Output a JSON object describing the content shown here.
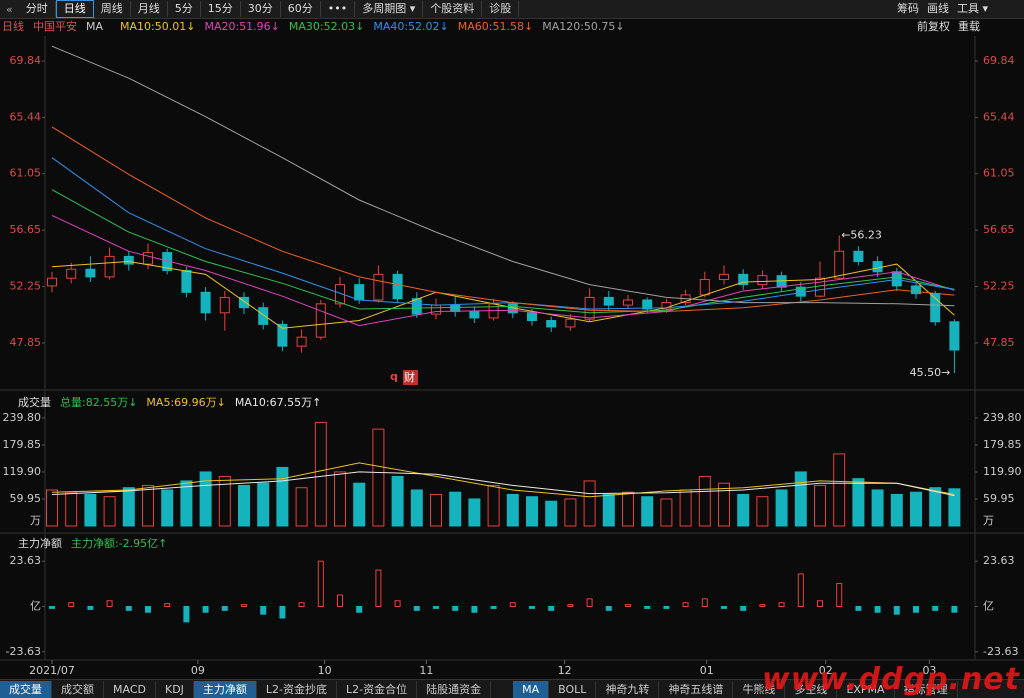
{
  "toolbar": {
    "tabs": [
      "分时",
      "日线",
      "周线",
      "月线",
      "5分",
      "15分",
      "30分",
      "60分",
      "•••",
      "多周期图 ▾",
      "个股资料",
      "诊股"
    ],
    "right": [
      "筹码",
      "画线",
      "工具 ▾"
    ]
  },
  "header": {
    "period": "日线",
    "name": "中国平安",
    "indicator": "MA",
    "right": [
      "前复权",
      "重载"
    ]
  },
  "chart_data": [
    {
      "type": "candlestick",
      "candles": {
        "open": [
          52.3,
          52.9,
          53.6,
          53.0,
          54.6,
          54.0,
          54.9,
          53.5,
          51.8,
          50.2,
          51.4,
          50.6,
          49.3,
          47.6,
          48.3,
          50.9,
          52.4,
          51.2,
          53.2,
          51.3,
          50.1,
          50.8,
          50.3,
          49.8,
          50.9,
          50.2,
          49.6,
          49.1,
          49.7,
          51.4,
          50.8,
          51.2,
          50.5,
          51.0,
          51.6,
          52.8,
          53.2,
          52.4,
          53.1,
          52.2,
          51.5,
          52.9,
          55.0,
          54.2,
          53.4,
          52.3,
          51.7,
          49.5
        ],
        "close": [
          52.9,
          53.6,
          53.0,
          54.6,
          54.0,
          54.9,
          53.5,
          51.8,
          50.2,
          51.4,
          50.6,
          49.3,
          47.6,
          48.3,
          50.9,
          52.4,
          51.2,
          53.2,
          51.3,
          50.1,
          50.8,
          50.3,
          49.8,
          50.9,
          50.2,
          49.6,
          49.1,
          49.7,
          51.4,
          50.8,
          51.2,
          50.5,
          51.0,
          51.6,
          52.8,
          53.2,
          52.4,
          53.1,
          52.2,
          51.5,
          52.9,
          55.0,
          54.2,
          53.4,
          52.3,
          51.7,
          49.5,
          47.3
        ],
        "high": [
          53.4,
          54.1,
          54.6,
          55.3,
          55.0,
          55.6,
          55.2,
          53.8,
          52.2,
          51.9,
          51.8,
          51.0,
          49.6,
          48.9,
          51.2,
          53.0,
          52.9,
          53.9,
          53.5,
          51.8,
          51.3,
          51.5,
          50.7,
          51.3,
          51.1,
          50.5,
          49.9,
          50.1,
          52.1,
          51.9,
          51.6,
          51.4,
          51.3,
          52.0,
          53.4,
          53.9,
          53.6,
          53.5,
          53.4,
          52.6,
          54.2,
          56.23,
          55.4,
          54.6,
          53.7,
          52.5,
          51.9,
          49.7
        ],
        "low": [
          51.8,
          52.5,
          52.6,
          52.8,
          53.5,
          53.6,
          53.2,
          51.4,
          49.6,
          48.8,
          50.1,
          48.9,
          47.2,
          47.1,
          48.1,
          50.6,
          50.9,
          51.0,
          51.0,
          49.8,
          49.7,
          49.9,
          49.4,
          49.6,
          49.8,
          49.2,
          48.7,
          48.8,
          49.5,
          50.4,
          50.5,
          50.2,
          50.2,
          50.8,
          51.4,
          52.4,
          52.0,
          52.1,
          51.9,
          51.1,
          51.4,
          52.8,
          53.9,
          53.0,
          51.9,
          51.3,
          49.2,
          45.5
        ]
      },
      "up_color": "#e8403c",
      "down_color": "#14b3bd",
      "ylim": [
        44.57,
        71.48
      ],
      "yticks": [
        69.84,
        65.44,
        61.05,
        56.65,
        52.25,
        47.85
      ],
      "ma_x": [
        0,
        4,
        8,
        12,
        16,
        20,
        24,
        28,
        32,
        36,
        40,
        44,
        47
      ],
      "series": [
        {
          "name": "MA10:50.01↓",
          "color": "#f0c020",
          "values": [
            53.8,
            54.2,
            53.2,
            49.0,
            49.6,
            51.8,
            50.6,
            49.5,
            50.6,
            52.6,
            52.8,
            54.0,
            50.01
          ]
        },
        {
          "name": "MA20:51.96↓",
          "color": "#e040c0",
          "values": [
            57.8,
            55.0,
            53.5,
            51.5,
            49.2,
            50.3,
            50.4,
            49.8,
            50.3,
            51.9,
            52.6,
            53.4,
            51.96
          ]
        },
        {
          "name": "MA30:52.03↓",
          "color": "#30c050",
          "values": [
            59.8,
            56.5,
            54.2,
            52.5,
            50.5,
            50.6,
            50.7,
            50.2,
            50.4,
            51.4,
            52.3,
            53.0,
            52.03
          ]
        },
        {
          "name": "MA40:52.02↓",
          "color": "#3090f0",
          "values": [
            62.3,
            58.0,
            55.2,
            53.3,
            51.2,
            50.8,
            51.0,
            50.5,
            50.6,
            51.1,
            52.0,
            52.8,
            52.02
          ]
        },
        {
          "name": "MA60:51.58↓",
          "color": "#f06020",
          "values": [
            64.7,
            61.0,
            57.6,
            55.0,
            53.0,
            51.8,
            51.0,
            50.4,
            50.3,
            50.6,
            51.2,
            52.0,
            51.58
          ]
        },
        {
          "name": "MA120:50.75↓",
          "color": "#a0a0a0",
          "values": [
            71.0,
            68.5,
            65.5,
            62.3,
            59.0,
            56.5,
            54.2,
            52.4,
            51.4,
            51.0,
            51.0,
            50.9,
            50.75
          ]
        }
      ],
      "annotations": [
        "←56.23",
        "45.50→"
      ],
      "markers": [
        "q",
        "财"
      ]
    },
    {
      "type": "bar",
      "title": "成交量",
      "total_label": "总量:82.55万↓",
      "unit": "万",
      "values": [
        80,
        75,
        70,
        65,
        85,
        90,
        80,
        100,
        120,
        110,
        90,
        95,
        130,
        85,
        230,
        120,
        95,
        215,
        110,
        80,
        70,
        75,
        60,
        90,
        70,
        65,
        55,
        60,
        100,
        70,
        75,
        65,
        60,
        80,
        110,
        95,
        70,
        65,
        80,
        120,
        90,
        160,
        105,
        80,
        70,
        75,
        85,
        82.55
      ],
      "ylim": [
        0,
        253
      ],
      "yticks": [
        {
          "value": 239.8,
          "label": "239.80"
        },
        179.85,
        {
          "value": 119.9,
          "label": "119.90"
        },
        59.95
      ],
      "series": [
        {
          "name": "MA5:69.96万↓",
          "color": "#f0c020",
          "values": [
            75,
            80,
            100,
            105,
            140,
            110,
            80,
            65,
            78,
            85,
            100,
            95,
            69.96
          ]
        },
        {
          "name": "MA10:67.55万↑",
          "color": "#e8e8e8",
          "values": [
            70,
            78,
            90,
            100,
            120,
            115,
            90,
            72,
            74,
            80,
            95,
            95,
            67.55
          ]
        }
      ]
    },
    {
      "type": "bar",
      "title": "主力净额",
      "summary": "主力净额:-2.95亿↑",
      "values": [
        -1,
        2,
        -1.5,
        3,
        -2,
        -3,
        1.5,
        -8,
        -3,
        -2,
        1,
        -4,
        -6,
        2,
        23.63,
        6,
        -3,
        19,
        3,
        -2,
        -1,
        -2,
        -3,
        -1,
        2,
        -1,
        -2,
        1,
        4,
        -2,
        1,
        -1,
        -1,
        2,
        4,
        -1,
        -2,
        1,
        2,
        17,
        3,
        12,
        -2,
        -3,
        -4,
        -3,
        -2,
        -2.95
      ],
      "ylim": [
        -27.9,
        27.9
      ],
      "yticks": [
        23.63,
        {
          "value": 0,
          "label": "亿"
        },
        -23.63
      ],
      "xticks": [
        {
          "value": 0,
          "label": "2021/07"
        },
        {
          "value": 7.6,
          "label": "09"
        },
        {
          "value": 14.2,
          "label": "10"
        },
        {
          "value": 19.5,
          "label": "11"
        },
        {
          "value": 26.7,
          "label": "12"
        },
        {
          "value": 34.1,
          "label": "01"
        },
        {
          "value": 40.3,
          "label": "02"
        },
        {
          "value": 45.7,
          "label": "03"
        }
      ]
    }
  ],
  "bottom_tabs": {
    "left": [
      "成交量",
      "成交额",
      "MACD",
      "KDJ",
      "主力净额",
      "L2-资金抄底",
      "L2-资金合位",
      "陆股通资金"
    ],
    "right": [
      "MA",
      "BOLL",
      "神奇九转",
      "神奇五线谱",
      "牛熊线",
      "多空线",
      "EXPMA",
      "指标管理"
    ]
  },
  "watermark": "www.ddgp.net"
}
